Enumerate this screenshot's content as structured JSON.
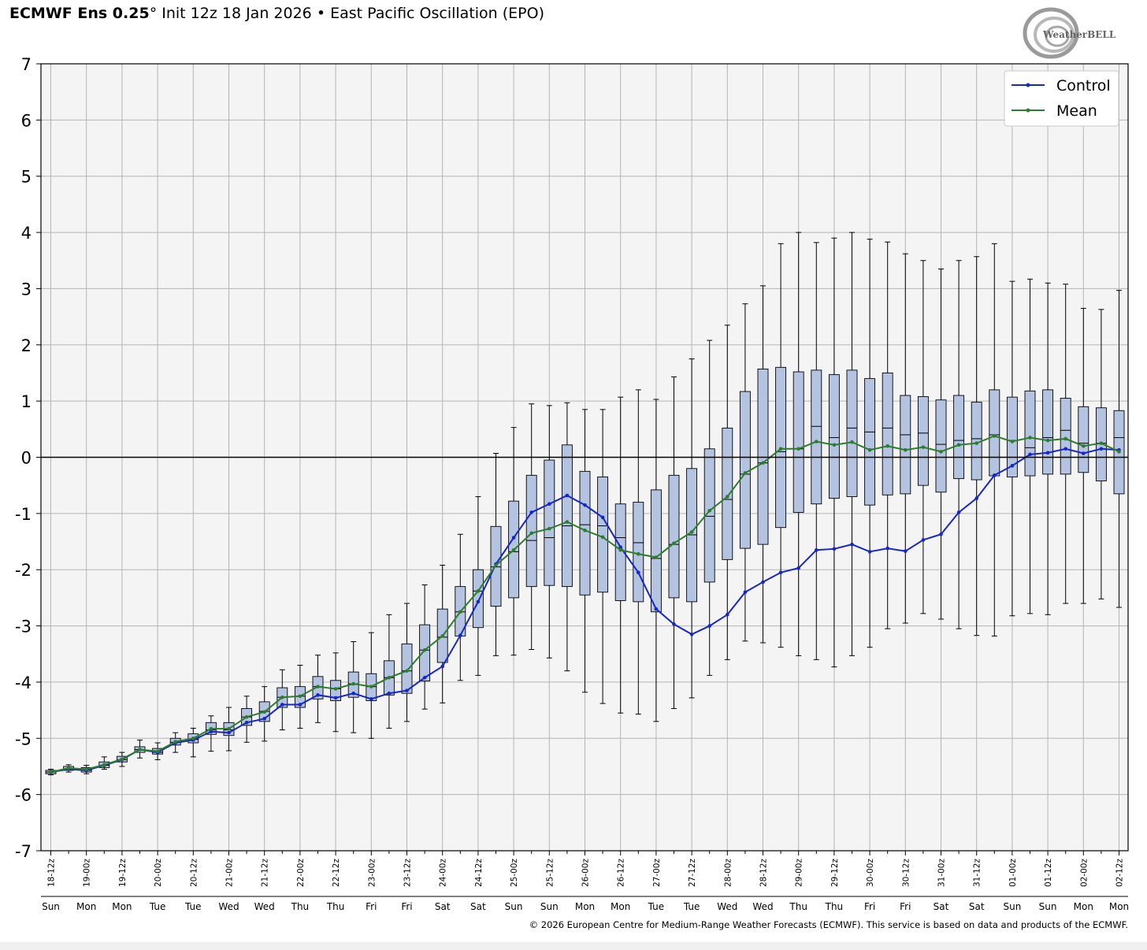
{
  "header": {
    "model": "ECMWF Ens 0.25",
    "degree": "°",
    "init": "Init 12z 18 Jan 2026",
    "bullet": "•",
    "index": "East Pacific Oscillation (EPO)"
  },
  "logo_text": "WeatherBELL",
  "copyright": "© 2026 European Centre for Medium-Range Weather Forecasts (ECMWF). This service is based on data and products of the ECMWF.",
  "colors": {
    "control": "#1726c8",
    "mean": "#2e7d2e",
    "box_fill": "#b3c3e0",
    "plot_bg": "#f4f4f4",
    "grid": "#b4b4b4"
  },
  "chart_data": {
    "type": "box",
    "title": "East Pacific Oscillation (EPO)",
    "ylim": [
      -7,
      7
    ],
    "yticks": [
      7,
      6,
      5,
      4,
      3,
      2,
      1,
      0,
      -1,
      -2,
      -3,
      -4,
      -5,
      -6,
      -7
    ],
    "ytick_labels": [
      "7",
      "6",
      "5",
      "4",
      "3",
      "2",
      "1",
      "0",
      "-1",
      "-2",
      "-3",
      "-4",
      "-5",
      "-6",
      "-7"
    ],
    "x_count": 61,
    "x_labels": [
      "18-12z",
      "19-00z",
      "19-12z",
      "20-00z",
      "20-12z",
      "21-00z",
      "21-12z",
      "22-00z",
      "22-12z",
      "23-00z",
      "23-12z",
      "24-00z",
      "24-12z",
      "25-00z",
      "25-12z",
      "26-00z",
      "26-12z",
      "27-00z",
      "27-12z",
      "28-00z",
      "28-12z",
      "29-00z",
      "29-12z",
      "30-00z",
      "30-12z",
      "31-00z",
      "31-12z",
      "01-00z",
      "01-12z",
      "02-00z",
      "02-12z"
    ],
    "day_labels": [
      "Sun",
      "Mon",
      "Mon",
      "Tue",
      "Tue",
      "Wed",
      "Wed",
      "Thu",
      "Thu",
      "Fri",
      "Fri",
      "Sat",
      "Sat",
      "Sun",
      "Sun",
      "Mon",
      "Mon",
      "Tue",
      "Tue",
      "Wed",
      "Wed",
      "Thu",
      "Thu",
      "Fri",
      "Fri",
      "Sat",
      "Sat",
      "Sun",
      "Sun",
      "Mon",
      "Mon"
    ],
    "grid": true,
    "legend_position": "top-right",
    "series": [
      {
        "name": "Control",
        "color": "#1726c8",
        "values": [
          -5.6,
          -5.55,
          -5.57,
          -5.48,
          -5.38,
          -5.2,
          -5.25,
          -5.08,
          -5.03,
          -4.88,
          -4.9,
          -4.72,
          -4.65,
          -4.4,
          -4.4,
          -4.23,
          -4.28,
          -4.2,
          -4.3,
          -4.2,
          -4.15,
          -3.92,
          -3.72,
          -3.17,
          -2.57,
          -1.9,
          -1.43,
          -0.98,
          -0.83,
          -0.68,
          -0.85,
          -1.07,
          -1.6,
          -2.05,
          -2.7,
          -2.97,
          -3.15,
          -3.0,
          -2.8,
          -2.4,
          -2.22,
          -2.05,
          -1.97,
          -1.65,
          -1.63,
          -1.55,
          -1.68,
          -1.62,
          -1.67,
          -1.47,
          -1.37,
          -0.98,
          -0.73,
          -0.32,
          -0.15,
          0.05,
          0.08,
          0.15,
          0.07,
          0.15,
          0.13
        ]
      },
      {
        "name": "Mean",
        "color": "#2e7d2e",
        "values": [
          -5.6,
          -5.53,
          -5.55,
          -5.47,
          -5.37,
          -5.2,
          -5.23,
          -5.06,
          -5.0,
          -4.83,
          -4.83,
          -4.62,
          -4.53,
          -4.27,
          -4.25,
          -4.08,
          -4.12,
          -4.03,
          -4.08,
          -3.92,
          -3.8,
          -3.43,
          -3.18,
          -2.75,
          -2.38,
          -1.92,
          -1.65,
          -1.35,
          -1.27,
          -1.15,
          -1.3,
          -1.42,
          -1.65,
          -1.72,
          -1.78,
          -1.53,
          -1.33,
          -0.95,
          -0.7,
          -0.28,
          -0.1,
          0.15,
          0.15,
          0.28,
          0.22,
          0.27,
          0.13,
          0.2,
          0.13,
          0.18,
          0.1,
          0.22,
          0.25,
          0.38,
          0.28,
          0.35,
          0.3,
          0.33,
          0.2,
          0.25,
          0.1
        ]
      }
    ],
    "boxes": {
      "min": [
        -5.65,
        -5.6,
        -5.63,
        -5.55,
        -5.5,
        -5.35,
        -5.38,
        -5.25,
        -5.33,
        -5.23,
        -5.22,
        -5.07,
        -5.05,
        -4.85,
        -4.82,
        -4.72,
        -4.88,
        -4.9,
        -5.0,
        -4.82,
        -4.7,
        -4.48,
        -4.37,
        -3.97,
        -3.88,
        -3.53,
        -3.52,
        -3.42,
        -3.57,
        -3.8,
        -4.18,
        -4.38,
        -4.55,
        -4.57,
        -4.7,
        -4.47,
        -4.28,
        -3.88,
        -3.6,
        -3.27,
        -3.3,
        -3.38,
        -3.53,
        -3.6,
        -3.73,
        -3.53,
        -3.38,
        -3.05,
        -2.95,
        -2.78,
        -2.88,
        -3.05,
        -3.17,
        -3.18,
        -2.82,
        -2.78,
        -2.8,
        -2.6,
        -2.6,
        -2.52,
        -2.67
      ],
      "q1": [
        -5.63,
        -5.57,
        -5.6,
        -5.52,
        -5.42,
        -5.25,
        -5.28,
        -5.12,
        -5.08,
        -4.93,
        -4.95,
        -4.77,
        -4.7,
        -4.45,
        -4.45,
        -4.3,
        -4.33,
        -4.27,
        -4.33,
        -4.23,
        -4.2,
        -3.98,
        -3.65,
        -3.18,
        -3.03,
        -2.65,
        -2.5,
        -2.3,
        -2.28,
        -2.3,
        -2.45,
        -2.4,
        -2.55,
        -2.57,
        -2.75,
        -2.5,
        -2.57,
        -2.22,
        -1.82,
        -1.62,
        -1.55,
        -1.25,
        -0.98,
        -0.83,
        -0.73,
        -0.7,
        -0.85,
        -0.67,
        -0.65,
        -0.5,
        -0.62,
        -0.38,
        -0.4,
        -0.33,
        -0.35,
        -0.33,
        -0.3,
        -0.3,
        -0.27,
        -0.42,
        -0.65
      ],
      "median": [
        -5.6,
        -5.54,
        -5.57,
        -5.48,
        -5.38,
        -5.2,
        -5.25,
        -5.07,
        -5.02,
        -4.85,
        -4.85,
        -4.62,
        -4.52,
        -4.27,
        -4.25,
        -4.08,
        -4.12,
        -4.03,
        -4.08,
        -3.92,
        -3.8,
        -3.43,
        -3.2,
        -2.75,
        -2.38,
        -1.95,
        -1.68,
        -1.48,
        -1.43,
        -1.22,
        -1.2,
        -1.22,
        -1.43,
        -1.52,
        -1.8,
        -1.55,
        -1.38,
        -1.05,
        -0.75,
        -0.3,
        -0.1,
        0.1,
        0.15,
        0.55,
        0.35,
        0.52,
        0.45,
        0.52,
        0.4,
        0.43,
        0.23,
        0.3,
        0.33,
        0.4,
        0.3,
        0.17,
        0.35,
        0.48,
        0.25,
        0.25,
        0.35
      ],
      "q3": [
        -5.57,
        -5.5,
        -5.52,
        -5.42,
        -5.32,
        -5.15,
        -5.18,
        -5.0,
        -4.92,
        -4.72,
        -4.72,
        -4.47,
        -4.35,
        -4.1,
        -4.08,
        -3.9,
        -3.97,
        -3.82,
        -3.85,
        -3.62,
        -3.32,
        -2.98,
        -2.7,
        -2.3,
        -2.0,
        -1.23,
        -0.78,
        -0.32,
        -0.05,
        0.22,
        -0.25,
        -0.35,
        -0.83,
        -0.8,
        -0.58,
        -0.32,
        -0.2,
        0.15,
        0.52,
        1.17,
        1.57,
        1.6,
        1.52,
        1.55,
        1.47,
        1.55,
        1.4,
        1.5,
        1.1,
        1.08,
        1.02,
        1.1,
        0.98,
        1.2,
        1.07,
        1.18,
        1.2,
        1.05,
        0.9,
        0.88,
        0.83
      ],
      "max": [
        -5.55,
        -5.47,
        -5.48,
        -5.33,
        -5.25,
        -5.03,
        -5.08,
        -4.9,
        -4.82,
        -4.6,
        -4.45,
        -4.25,
        -4.08,
        -3.78,
        -3.7,
        -3.52,
        -3.48,
        -3.28,
        -3.12,
        -2.8,
        -2.6,
        -2.27,
        -1.92,
        -1.37,
        -0.7,
        0.07,
        0.53,
        0.95,
        0.92,
        0.97,
        0.85,
        0.85,
        1.07,
        1.2,
        1.03,
        1.43,
        1.75,
        2.08,
        2.35,
        2.73,
        3.05,
        3.8,
        4.0,
        3.82,
        3.9,
        4.0,
        3.88,
        3.83,
        3.62,
        3.5,
        3.35,
        3.5,
        3.57,
        3.8,
        3.13,
        3.17,
        3.1,
        3.08,
        2.65,
        2.63,
        2.97
      ]
    }
  }
}
